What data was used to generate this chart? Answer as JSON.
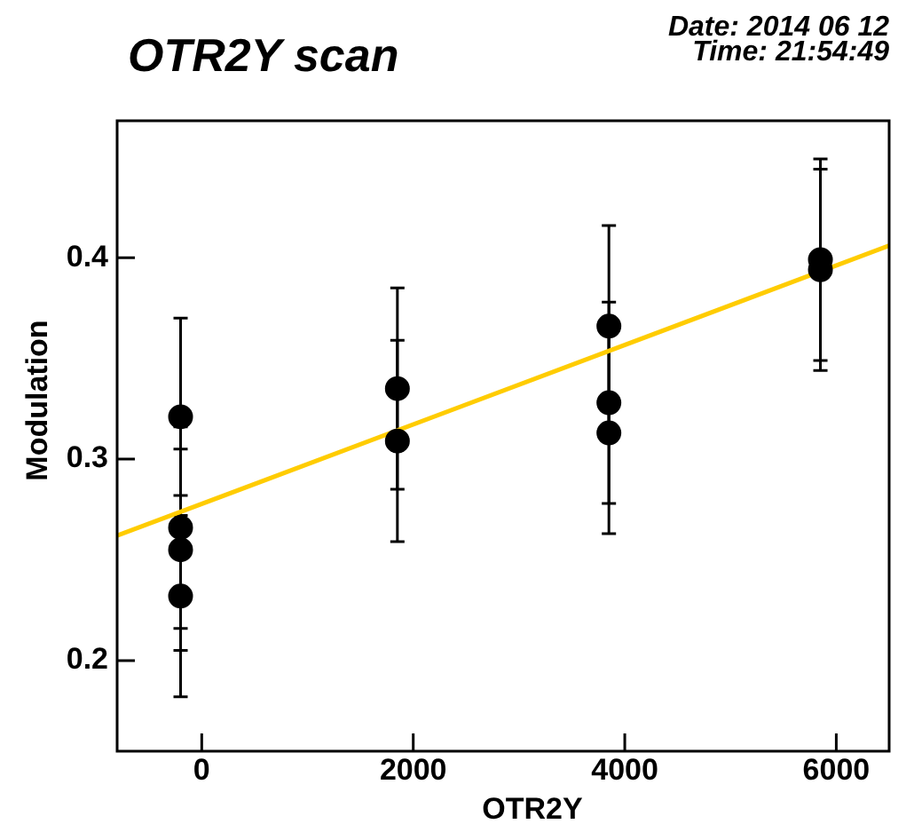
{
  "chart_data": {
    "type": "scatter",
    "title": "OTR2Y scan",
    "xlabel": "OTR2Y",
    "ylabel": "Modulation",
    "annotations": [
      "Date: 2014 06 12",
      "Time: 21:54:49"
    ],
    "xlim": [
      -800,
      6500
    ],
    "xticks": [
      0,
      2000,
      4000,
      6000
    ],
    "ylim": [
      0.155,
      0.468
    ],
    "yticks": [
      0.2,
      0.3,
      0.4
    ],
    "grid": false,
    "series": [
      {
        "color": "#000000",
        "marker": "circle",
        "x": [
          -200,
          -200,
          -200,
          -200,
          1850,
          1850,
          3850,
          3850,
          3850,
          5850,
          5850
        ],
        "values": [
          0.321,
          0.266,
          0.255,
          0.232,
          0.335,
          0.309,
          0.366,
          0.328,
          0.313,
          0.399,
          0.394
        ],
        "errors": [
          0.049,
          0.05,
          0.05,
          0.05,
          0.05,
          0.05,
          0.05,
          0.05,
          0.05,
          0.05,
          0.05
        ]
      },
      {
        "type": "line",
        "color": "#ffcc00",
        "marker": "none",
        "x": [
          -800,
          6500
        ],
        "values": [
          0.262,
          0.406
        ]
      }
    ]
  }
}
